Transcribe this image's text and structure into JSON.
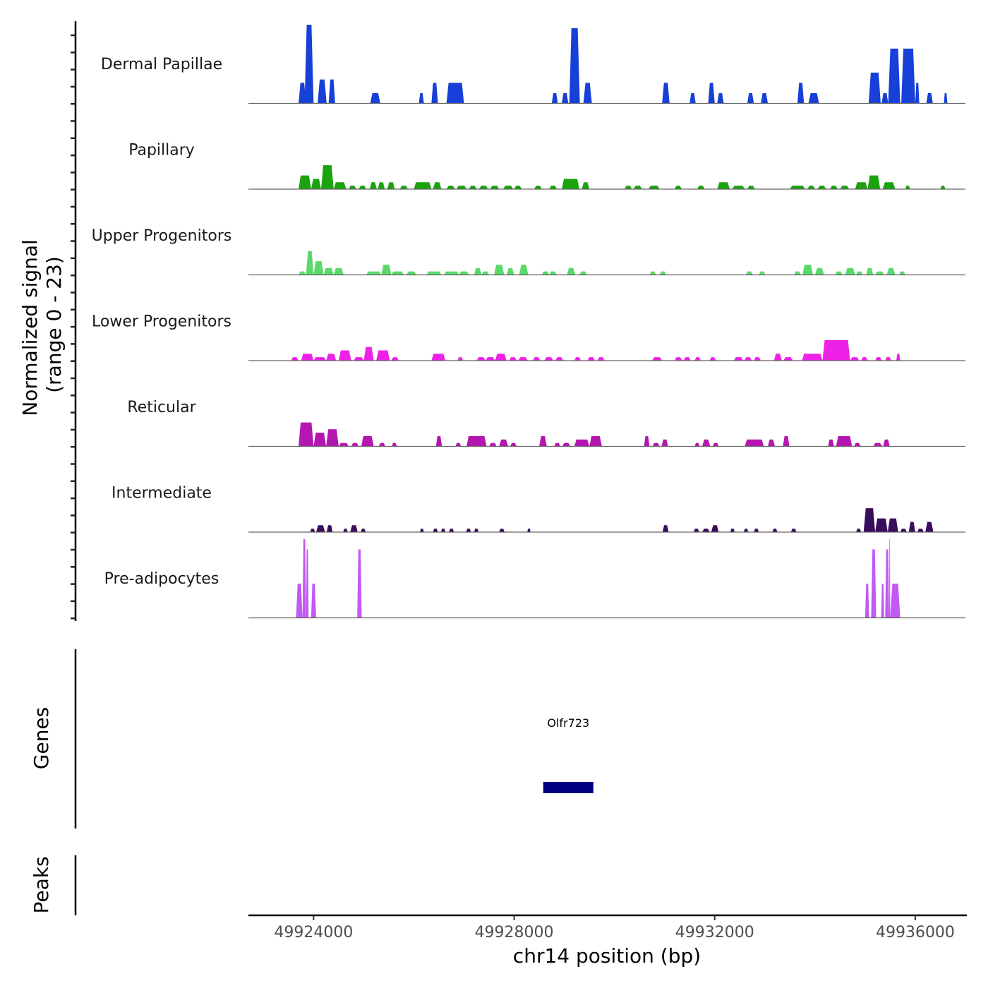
{
  "chart_data": {
    "type": "area",
    "title": "",
    "xlabel": "chr14 position (bp)",
    "ylabel": "Normalized signal\n(range 0 - 23)",
    "ylabel_lines": [
      "Normalized signal",
      "(range 0 - 23)"
    ],
    "ylim": [
      0,
      23
    ],
    "xlim": [
      49922700,
      49937000
    ],
    "x_ticks": [
      49924000,
      49928000,
      49932000,
      49936000
    ],
    "x_tick_labels": [
      "49924000",
      "49928000",
      "49932000",
      "49936000"
    ],
    "grid": false,
    "legend": "none",
    "tracks": [
      {
        "name": "Dermal Papillae",
        "color": "#1640d8",
        "regions": [
          [
            49923700,
            49923850,
            6
          ],
          [
            49923820,
            49924000,
            23
          ],
          [
            49924080,
            49924260,
            7
          ],
          [
            49924300,
            49924430,
            7
          ],
          [
            49925130,
            49925330,
            3
          ],
          [
            49926100,
            49926200,
            3
          ],
          [
            49926350,
            49926480,
            6
          ],
          [
            49926650,
            49927000,
            6
          ],
          [
            49928750,
            49928870,
            3
          ],
          [
            49928950,
            49929080,
            3
          ],
          [
            49929100,
            49929310,
            22
          ],
          [
            49929380,
            49929550,
            6
          ],
          [
            49930950,
            49931100,
            6
          ],
          [
            49931500,
            49931620,
            3
          ],
          [
            49931870,
            49932000,
            6
          ],
          [
            49932050,
            49932180,
            3
          ],
          [
            49932650,
            49932780,
            3
          ],
          [
            49932920,
            49933060,
            3
          ],
          [
            49933650,
            49933780,
            6
          ],
          [
            49933870,
            49934080,
            3
          ],
          [
            49935070,
            49935310,
            9
          ],
          [
            49935330,
            49935460,
            3
          ],
          [
            49935460,
            49935700,
            16
          ],
          [
            49935720,
            49936000,
            16
          ],
          [
            49936000,
            49936080,
            6
          ],
          [
            49936220,
            49936350,
            3
          ],
          [
            49936570,
            49936640,
            3
          ]
        ]
      },
      {
        "name": "Papillary",
        "color": "#1aa30e",
        "regions": [
          [
            49923700,
            49923950,
            4
          ],
          [
            49923950,
            49924150,
            3
          ],
          [
            49924150,
            49924400,
            7
          ],
          [
            49924400,
            49924650,
            2
          ],
          [
            49924700,
            49924850,
            1
          ],
          [
            49924900,
            49925050,
            1
          ],
          [
            49925120,
            49925260,
            2
          ],
          [
            49925280,
            49925420,
            2
          ],
          [
            49925470,
            49925620,
            2
          ],
          [
            49925720,
            49925880,
            1
          ],
          [
            49926000,
            49926350,
            2
          ],
          [
            49926380,
            49926550,
            2
          ],
          [
            49926650,
            49926820,
            1
          ],
          [
            49926850,
            49927050,
            1
          ],
          [
            49927100,
            49927250,
            1
          ],
          [
            49927300,
            49927480,
            1
          ],
          [
            49927520,
            49927700,
            1
          ],
          [
            49927780,
            49927980,
            1
          ],
          [
            49928000,
            49928150,
            1
          ],
          [
            49928400,
            49928550,
            1
          ],
          [
            49928700,
            49928850,
            1
          ],
          [
            49928950,
            49929300,
            3
          ],
          [
            49929350,
            49929500,
            2
          ],
          [
            49930200,
            49930350,
            1
          ],
          [
            49930380,
            49930550,
            1
          ],
          [
            49930680,
            49930900,
            1
          ],
          [
            49931200,
            49931340,
            1
          ],
          [
            49931650,
            49931800,
            1
          ],
          [
            49932050,
            49932300,
            2
          ],
          [
            49932350,
            49932600,
            1
          ],
          [
            49932650,
            49932800,
            1
          ],
          [
            49933500,
            49933800,
            1
          ],
          [
            49933850,
            49934000,
            1
          ],
          [
            49934050,
            49934220,
            1
          ],
          [
            49934300,
            49934450,
            1
          ],
          [
            49934500,
            49934680,
            1
          ],
          [
            49934800,
            49935050,
            2
          ],
          [
            49935050,
            49935300,
            4
          ],
          [
            49935350,
            49935600,
            2
          ],
          [
            49935800,
            49935900,
            1
          ],
          [
            49936500,
            49936600,
            1
          ]
        ]
      },
      {
        "name": "Upper Progenitors",
        "color": "#5ad96a",
        "regions": [
          [
            49923700,
            49923850,
            1
          ],
          [
            49923850,
            49924000,
            7
          ],
          [
            49924000,
            49924200,
            4
          ],
          [
            49924200,
            49924400,
            2
          ],
          [
            49924400,
            49924600,
            2
          ],
          [
            49925050,
            49925350,
            1
          ],
          [
            49925350,
            49925550,
            3
          ],
          [
            49925550,
            49925800,
            1
          ],
          [
            49925850,
            49926050,
            1
          ],
          [
            49926250,
            49926550,
            1
          ],
          [
            49926600,
            49926900,
            1
          ],
          [
            49926900,
            49927100,
            1
          ],
          [
            49927200,
            49927350,
            2
          ],
          [
            49927350,
            49927500,
            1
          ],
          [
            49927600,
            49927800,
            3
          ],
          [
            49927850,
            49928000,
            2
          ],
          [
            49928100,
            49928280,
            3
          ],
          [
            49928550,
            49928700,
            1
          ],
          [
            49928700,
            49928850,
            1
          ],
          [
            49929050,
            49929220,
            2
          ],
          [
            49929300,
            49929450,
            1
          ],
          [
            49930700,
            49930830,
            1
          ],
          [
            49930900,
            49931030,
            1
          ],
          [
            49932620,
            49932760,
            1
          ],
          [
            49932880,
            49933010,
            1
          ],
          [
            49933580,
            49933720,
            1
          ],
          [
            49933750,
            49933960,
            3
          ],
          [
            49934000,
            49934180,
            2
          ],
          [
            49934400,
            49934550,
            1
          ],
          [
            49934600,
            49934800,
            2
          ],
          [
            49934820,
            49934950,
            1
          ],
          [
            49935020,
            49935160,
            2
          ],
          [
            49935200,
            49935380,
            1
          ],
          [
            49935430,
            49935600,
            2
          ],
          [
            49935680,
            49935800,
            1
          ]
        ]
      },
      {
        "name": "Lower Progenitors",
        "color": "#ee22e6",
        "regions": [
          [
            49923550,
            49923700,
            1
          ],
          [
            49923750,
            49924000,
            2
          ],
          [
            49924000,
            49924250,
            1
          ],
          [
            49924250,
            49924450,
            2
          ],
          [
            49924500,
            49924750,
            3
          ],
          [
            49924800,
            49925000,
            1
          ],
          [
            49925000,
            49925200,
            4
          ],
          [
            49925250,
            49925520,
            3
          ],
          [
            49925550,
            49925700,
            1
          ],
          [
            49926350,
            49926630,
            2
          ],
          [
            49926870,
            49926980,
            1
          ],
          [
            49927250,
            49927430,
            1
          ],
          [
            49927430,
            49927620,
            1
          ],
          [
            49927620,
            49927850,
            2
          ],
          [
            49927900,
            49928050,
            1
          ],
          [
            49928080,
            49928270,
            1
          ],
          [
            49928370,
            49928520,
            1
          ],
          [
            49928600,
            49928780,
            1
          ],
          [
            49928820,
            49928980,
            1
          ],
          [
            49929200,
            49929330,
            1
          ],
          [
            49929460,
            49929610,
            1
          ],
          [
            49929660,
            49929800,
            1
          ],
          [
            49930750,
            49930950,
            1
          ],
          [
            49931200,
            49931350,
            1
          ],
          [
            49931380,
            49931520,
            1
          ],
          [
            49931600,
            49931720,
            1
          ],
          [
            49931900,
            49932020,
            1
          ],
          [
            49932380,
            49932570,
            1
          ],
          [
            49932590,
            49932740,
            1
          ],
          [
            49932780,
            49932920,
            1
          ],
          [
            49933180,
            49933340,
            2
          ],
          [
            49933370,
            49933560,
            1
          ],
          [
            49933740,
            49934150,
            2
          ],
          [
            49934150,
            49934700,
            6
          ],
          [
            49934700,
            49934880,
            1
          ],
          [
            49934920,
            49935050,
            1
          ],
          [
            49935200,
            49935330,
            1
          ],
          [
            49935400,
            49935520,
            1
          ],
          [
            49935620,
            49935700,
            2
          ]
        ]
      },
      {
        "name": "Reticular",
        "color": "#b515b0",
        "regions": [
          [
            49923700,
            49924000,
            7
          ],
          [
            49924000,
            49924250,
            4
          ],
          [
            49924250,
            49924500,
            5
          ],
          [
            49924500,
            49924700,
            1
          ],
          [
            49924750,
            49924900,
            1
          ],
          [
            49924950,
            49925200,
            3
          ],
          [
            49925300,
            49925430,
            1
          ],
          [
            49925560,
            49925660,
            1
          ],
          [
            49926440,
            49926560,
            3
          ],
          [
            49926830,
            49926940,
            1
          ],
          [
            49927050,
            49927450,
            3
          ],
          [
            49927500,
            49927650,
            1
          ],
          [
            49927700,
            49927880,
            2
          ],
          [
            49927920,
            49928050,
            1
          ],
          [
            49928500,
            49928650,
            3
          ],
          [
            49928800,
            49928920,
            1
          ],
          [
            49928960,
            49929120,
            1
          ],
          [
            49929200,
            49929500,
            2
          ],
          [
            49929500,
            49929750,
            3
          ],
          [
            49930590,
            49930700,
            3
          ],
          [
            49930760,
            49930900,
            1
          ],
          [
            49930940,
            49931070,
            2
          ],
          [
            49931600,
            49931700,
            1
          ],
          [
            49931750,
            49931910,
            2
          ],
          [
            49931960,
            49932080,
            1
          ],
          [
            49932600,
            49932980,
            2
          ],
          [
            49933060,
            49933200,
            2
          ],
          [
            49933360,
            49933490,
            3
          ],
          [
            49934260,
            49934380,
            2
          ],
          [
            49934420,
            49934740,
            3
          ],
          [
            49934780,
            49934910,
            1
          ],
          [
            49935160,
            49935340,
            1
          ],
          [
            49935360,
            49935490,
            2
          ]
        ]
      },
      {
        "name": "Intermediate",
        "color": "#3a0c5c",
        "regions": [
          [
            49923930,
            49924030,
            1
          ],
          [
            49924050,
            49924230,
            2
          ],
          [
            49924260,
            49924380,
            2
          ],
          [
            49924590,
            49924680,
            1
          ],
          [
            49924730,
            49924880,
            2
          ],
          [
            49924940,
            49925040,
            1
          ],
          [
            49926120,
            49926200,
            1
          ],
          [
            49926380,
            49926480,
            1
          ],
          [
            49926540,
            49926630,
            1
          ],
          [
            49926700,
            49926800,
            1
          ],
          [
            49927040,
            49927140,
            1
          ],
          [
            49927200,
            49927290,
            1
          ],
          [
            49927700,
            49927810,
            1
          ],
          [
            49928260,
            49928330,
            1
          ],
          [
            49930960,
            49931080,
            2
          ],
          [
            49931580,
            49931690,
            1
          ],
          [
            49931750,
            49931900,
            1
          ],
          [
            49931930,
            49932080,
            2
          ],
          [
            49932310,
            49932400,
            1
          ],
          [
            49932580,
            49932670,
            1
          ],
          [
            49932780,
            49932880,
            1
          ],
          [
            49933150,
            49933250,
            1
          ],
          [
            49933520,
            49933630,
            1
          ],
          [
            49934820,
            49934920,
            1
          ],
          [
            49934970,
            49935200,
            7
          ],
          [
            49935200,
            49935450,
            4
          ],
          [
            49935450,
            49935660,
            4
          ],
          [
            49935700,
            49935830,
            1
          ],
          [
            49935870,
            49936000,
            3
          ],
          [
            49936040,
            49936170,
            1
          ],
          [
            49936200,
            49936360,
            3
          ]
        ]
      },
      {
        "name": "Pre-adipocytes",
        "color": "#c159f4",
        "regions": [
          [
            49923650,
            49923780,
            10
          ],
          [
            49923780,
            49923850,
            23
          ],
          [
            49923850,
            49923900,
            20
          ],
          [
            49923950,
            49924050,
            10
          ],
          [
            49924870,
            49924960,
            20
          ],
          [
            49935000,
            49935080,
            10
          ],
          [
            49935120,
            49935220,
            20
          ],
          [
            49935320,
            49935380,
            10
          ],
          [
            49935400,
            49935480,
            20
          ],
          [
            49935480,
            49935500,
            23
          ],
          [
            49935500,
            49935700,
            10
          ]
        ]
      }
    ],
    "genes_track": {
      "label": "Genes",
      "genes": [
        {
          "name": "Olfr723",
          "start": 49928580,
          "end": 49929580,
          "strand": "-",
          "color": "#000080"
        }
      ]
    },
    "peaks_track": {
      "label": "Peaks",
      "peaks": []
    }
  }
}
